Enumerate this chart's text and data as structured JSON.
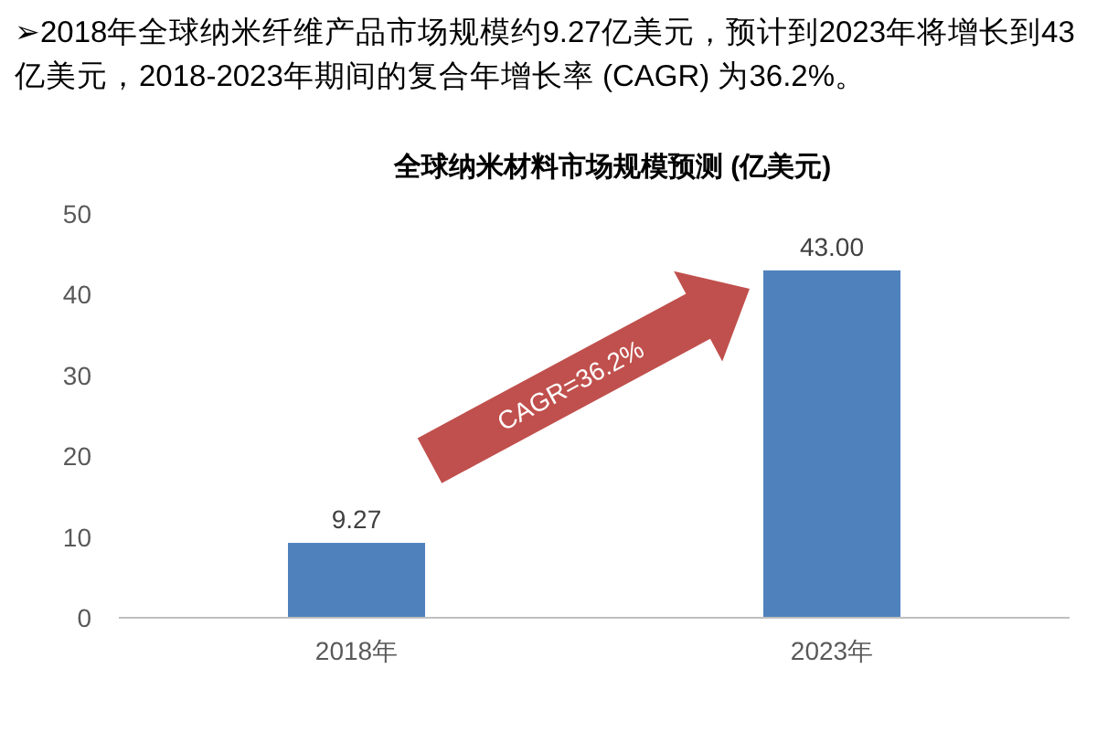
{
  "chart_data": {
    "type": "bar",
    "title": "全球纳米材料市场规模预测 (亿美元)",
    "categories": [
      "2018年",
      "2023年"
    ],
    "values": [
      9.27,
      43.0
    ],
    "value_labels": [
      "9.27",
      "43.00"
    ],
    "color": "#4f81bd",
    "ylim": [
      0,
      50
    ],
    "yticks": [
      0,
      10,
      20,
      30,
      40,
      50
    ],
    "annotations": [
      "➢2018年全球纳米纤维产品市场规模约9.27亿美元，预计到2023年将增长到43亿美元，2018-2023年期间的复合年增长率 (CAGR) 为36.2%。",
      "CAGR=36.2%"
    ]
  }
}
